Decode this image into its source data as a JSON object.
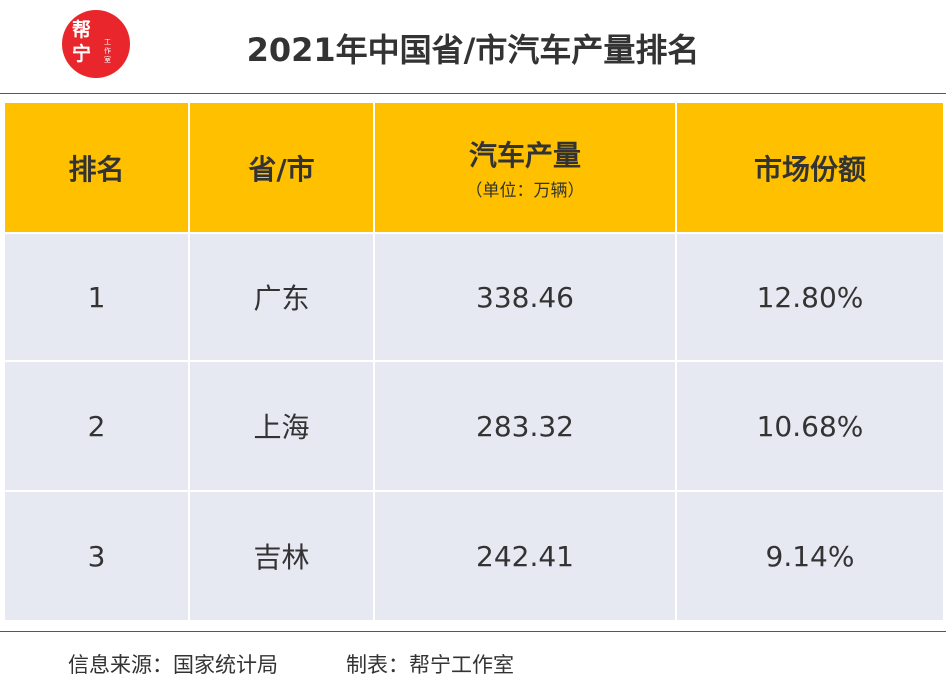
{
  "logo": {
    "main": "帮宁",
    "sub": "工作室"
  },
  "header": {
    "title": "2021年中国省/市汽车产量排名"
  },
  "table": {
    "columns": [
      {
        "label": "排名"
      },
      {
        "label": "省/市"
      },
      {
        "label": "汽车产量",
        "unit": "（单位：万辆）"
      },
      {
        "label": "市场份额"
      }
    ],
    "rows": [
      [
        "1",
        "广东",
        "338.46",
        "12.80%"
      ],
      [
        "2",
        "上海",
        "283.32",
        "10.68%"
      ],
      [
        "3",
        "吉林",
        "242.41",
        "9.14%"
      ]
    ]
  },
  "footer": {
    "source": "信息来源：国家统计局",
    "maker": "制表：帮宁工作室"
  }
}
